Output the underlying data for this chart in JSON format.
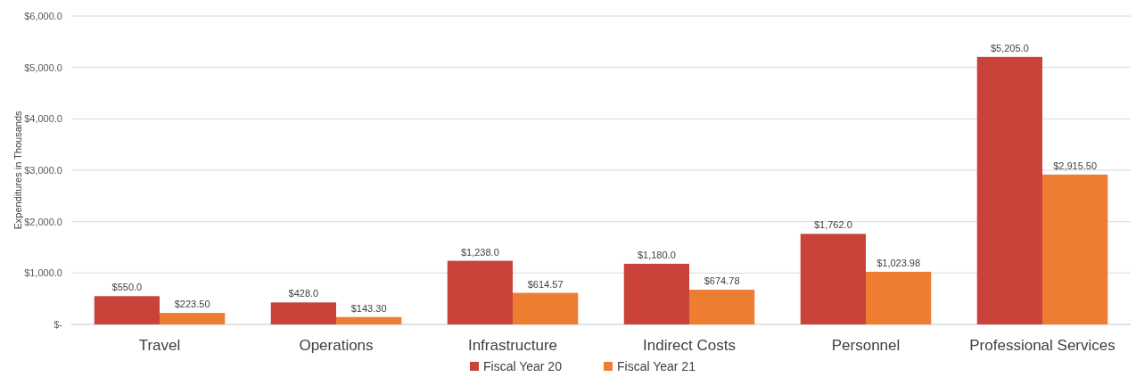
{
  "chart_data": {
    "type": "bar",
    "ylabel": "Expenditures in Thousands",
    "categories": [
      "Travel",
      "Operations",
      "Infrastructure",
      "Indirect Costs",
      "Personnel",
      "Professional Services"
    ],
    "series": [
      {
        "name": "Fiscal Year 20",
        "color": "#c9433a",
        "values": [
          550,
          428,
          1238,
          1180,
          1762,
          5205
        ],
        "value_labels": [
          "$550.0",
          "$428.0",
          "$1,238.0",
          "$1,180.0",
          "$1,762.0",
          "$5,205.0"
        ]
      },
      {
        "name": "Fiscal Year 21",
        "color": "#ed7d31",
        "values": [
          223.5,
          143.3,
          614.57,
          674.78,
          1023.98,
          2915.5
        ],
        "value_labels": [
          "$223.50",
          "$143.30",
          "$614.57",
          "$674.78",
          "$1,023.98",
          "$2,915.50"
        ]
      }
    ],
    "ylim": [
      0,
      6000
    ],
    "yticks": [
      {
        "value": 0,
        "label": "$-"
      },
      {
        "value": 1000,
        "label": "$1,000.0"
      },
      {
        "value": 2000,
        "label": "$2,000.0"
      },
      {
        "value": 3000,
        "label": "$3,000.0"
      },
      {
        "value": 4000,
        "label": "$4,000.0"
      },
      {
        "value": 5000,
        "label": "$5,000.0"
      },
      {
        "value": 6000,
        "label": "$6,000.0"
      }
    ],
    "grid": "y",
    "legend": "bottom"
  }
}
